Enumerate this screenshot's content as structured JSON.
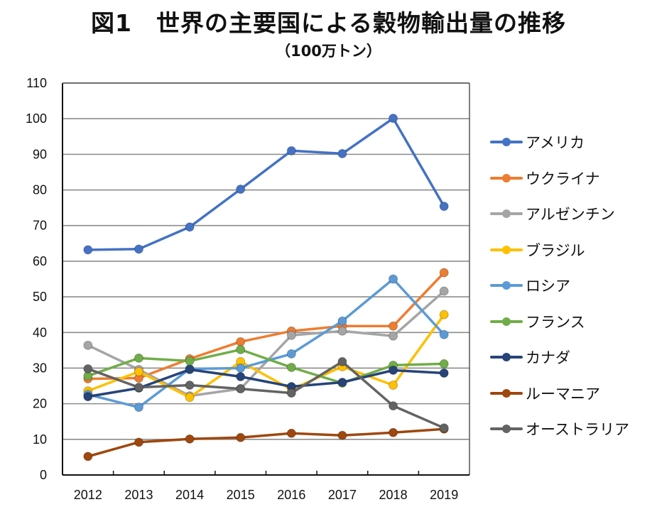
{
  "chart_data": {
    "type": "line",
    "title": "図1　世界の主要国による穀物輸出量の推移",
    "subtitle": "（100万トン）",
    "xlabel": "",
    "ylabel": "",
    "categories": [
      "2012",
      "2013",
      "2014",
      "2015",
      "2016",
      "2017",
      "2018",
      "2019"
    ],
    "ylim": [
      0,
      110
    ],
    "yticks": [
      "0",
      "10",
      "20",
      "30",
      "40",
      "50",
      "60",
      "70",
      "80",
      "90",
      "100",
      "110"
    ],
    "grid": true,
    "legend_position": "right",
    "series": [
      {
        "name": "アメリカ",
        "color": "#4472C4",
        "values": [
          63.2,
          63.4,
          69.6,
          80.2,
          91.0,
          90.2,
          100.1,
          75.4
        ]
      },
      {
        "name": "ウクライナ",
        "color": "#ED7D31",
        "values": [
          27.0,
          27.2,
          32.6,
          37.4,
          40.4,
          41.8,
          41.8,
          56.8
        ]
      },
      {
        "name": "アルゼンチン",
        "color": "#A5A5A5",
        "values": [
          36.4,
          29.6,
          22.2,
          24.2,
          39.2,
          40.4,
          39.0,
          51.6
        ]
      },
      {
        "name": "ブラジル",
        "color": "#FFC000",
        "values": [
          23.6,
          29.0,
          21.8,
          31.8,
          24.0,
          30.4,
          25.2,
          45.0
        ]
      },
      {
        "name": "ロシア",
        "color": "#5B9BD5",
        "values": [
          22.6,
          19.0,
          29.8,
          30.0,
          34.0,
          43.2,
          55.0,
          39.4
        ]
      },
      {
        "name": "フランス",
        "color": "#70AD47",
        "values": [
          27.8,
          32.8,
          32.0,
          35.2,
          30.2,
          25.8,
          30.8,
          31.2
        ]
      },
      {
        "name": "カナダ",
        "color": "#264478",
        "values": [
          22.0,
          24.4,
          29.6,
          27.6,
          24.8,
          26.0,
          29.4,
          28.6
        ]
      },
      {
        "name": "ルーマニア",
        "color": "#9E480E",
        "values": [
          5.2,
          9.2,
          10.1,
          10.5,
          11.7,
          11.1,
          11.9,
          12.9
        ]
      },
      {
        "name": "オーストラリア",
        "color": "#636363",
        "values": [
          29.8,
          24.6,
          25.2,
          24.2,
          23.0,
          31.8,
          19.4,
          13.2
        ]
      }
    ]
  }
}
